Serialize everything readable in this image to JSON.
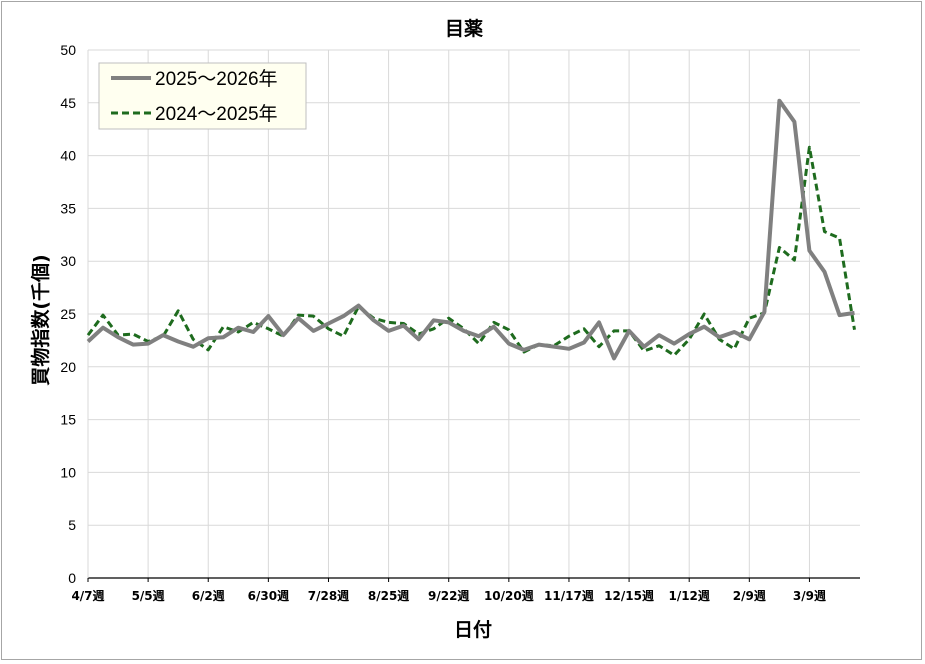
{
  "chart_data": {
    "type": "line",
    "title": "目薬",
    "xlabel": "日付",
    "ylabel": "買物指数(千個)",
    "ylim": [
      0,
      50
    ],
    "yticks": [
      0,
      5,
      10,
      15,
      20,
      25,
      30,
      35,
      40,
      45,
      50
    ],
    "xtick_labels": [
      "4/7週",
      "5/5週",
      "6/2週",
      "6/30週",
      "7/28週",
      "8/25週",
      "9/22週",
      "10/20週",
      "11/17週",
      "12/15週",
      "1/12週",
      "2/9週",
      "3/9週"
    ],
    "grid": true,
    "legend_position": "top-left",
    "series": [
      {
        "name": "2025～2026年",
        "color": "#808080",
        "style": "solid",
        "values": [
          22.4,
          23.7,
          22.8,
          22.1,
          22.2,
          23.0,
          22.4,
          21.9,
          22.7,
          22.8,
          23.7,
          23.3,
          24.8,
          23.0,
          24.6,
          23.4,
          24.1,
          24.8,
          25.8,
          24.4,
          23.4,
          23.9,
          22.6,
          24.4,
          24.2,
          23.4,
          22.9,
          23.8,
          22.2,
          21.6,
          22.1,
          21.9,
          21.7,
          22.3,
          24.2,
          20.8,
          23.4,
          21.9,
          23.0,
          22.2,
          23.1,
          23.8,
          22.8,
          23.3,
          22.6,
          25.2,
          45.2,
          43.2,
          31.0,
          29.0,
          24.9,
          25.1
        ]
      },
      {
        "name": "2024～2025年",
        "color": "#1e6b1e",
        "style": "dashed",
        "values": [
          23.0,
          24.9,
          23.0,
          23.1,
          22.4,
          22.9,
          25.3,
          22.6,
          21.6,
          23.8,
          23.3,
          24.2,
          23.6,
          22.9,
          24.9,
          24.8,
          23.6,
          22.9,
          25.7,
          24.6,
          24.2,
          24.1,
          23.1,
          23.6,
          24.6,
          23.6,
          22.2,
          24.2,
          23.5,
          21.4,
          22.1,
          22.0,
          22.9,
          23.6,
          21.9,
          23.4,
          23.4,
          21.5,
          22.0,
          21.1,
          22.6,
          25.0,
          22.6,
          21.7,
          24.6,
          25.1,
          31.3,
          30.1,
          40.8,
          32.8,
          32.2,
          23.5
        ]
      }
    ]
  }
}
